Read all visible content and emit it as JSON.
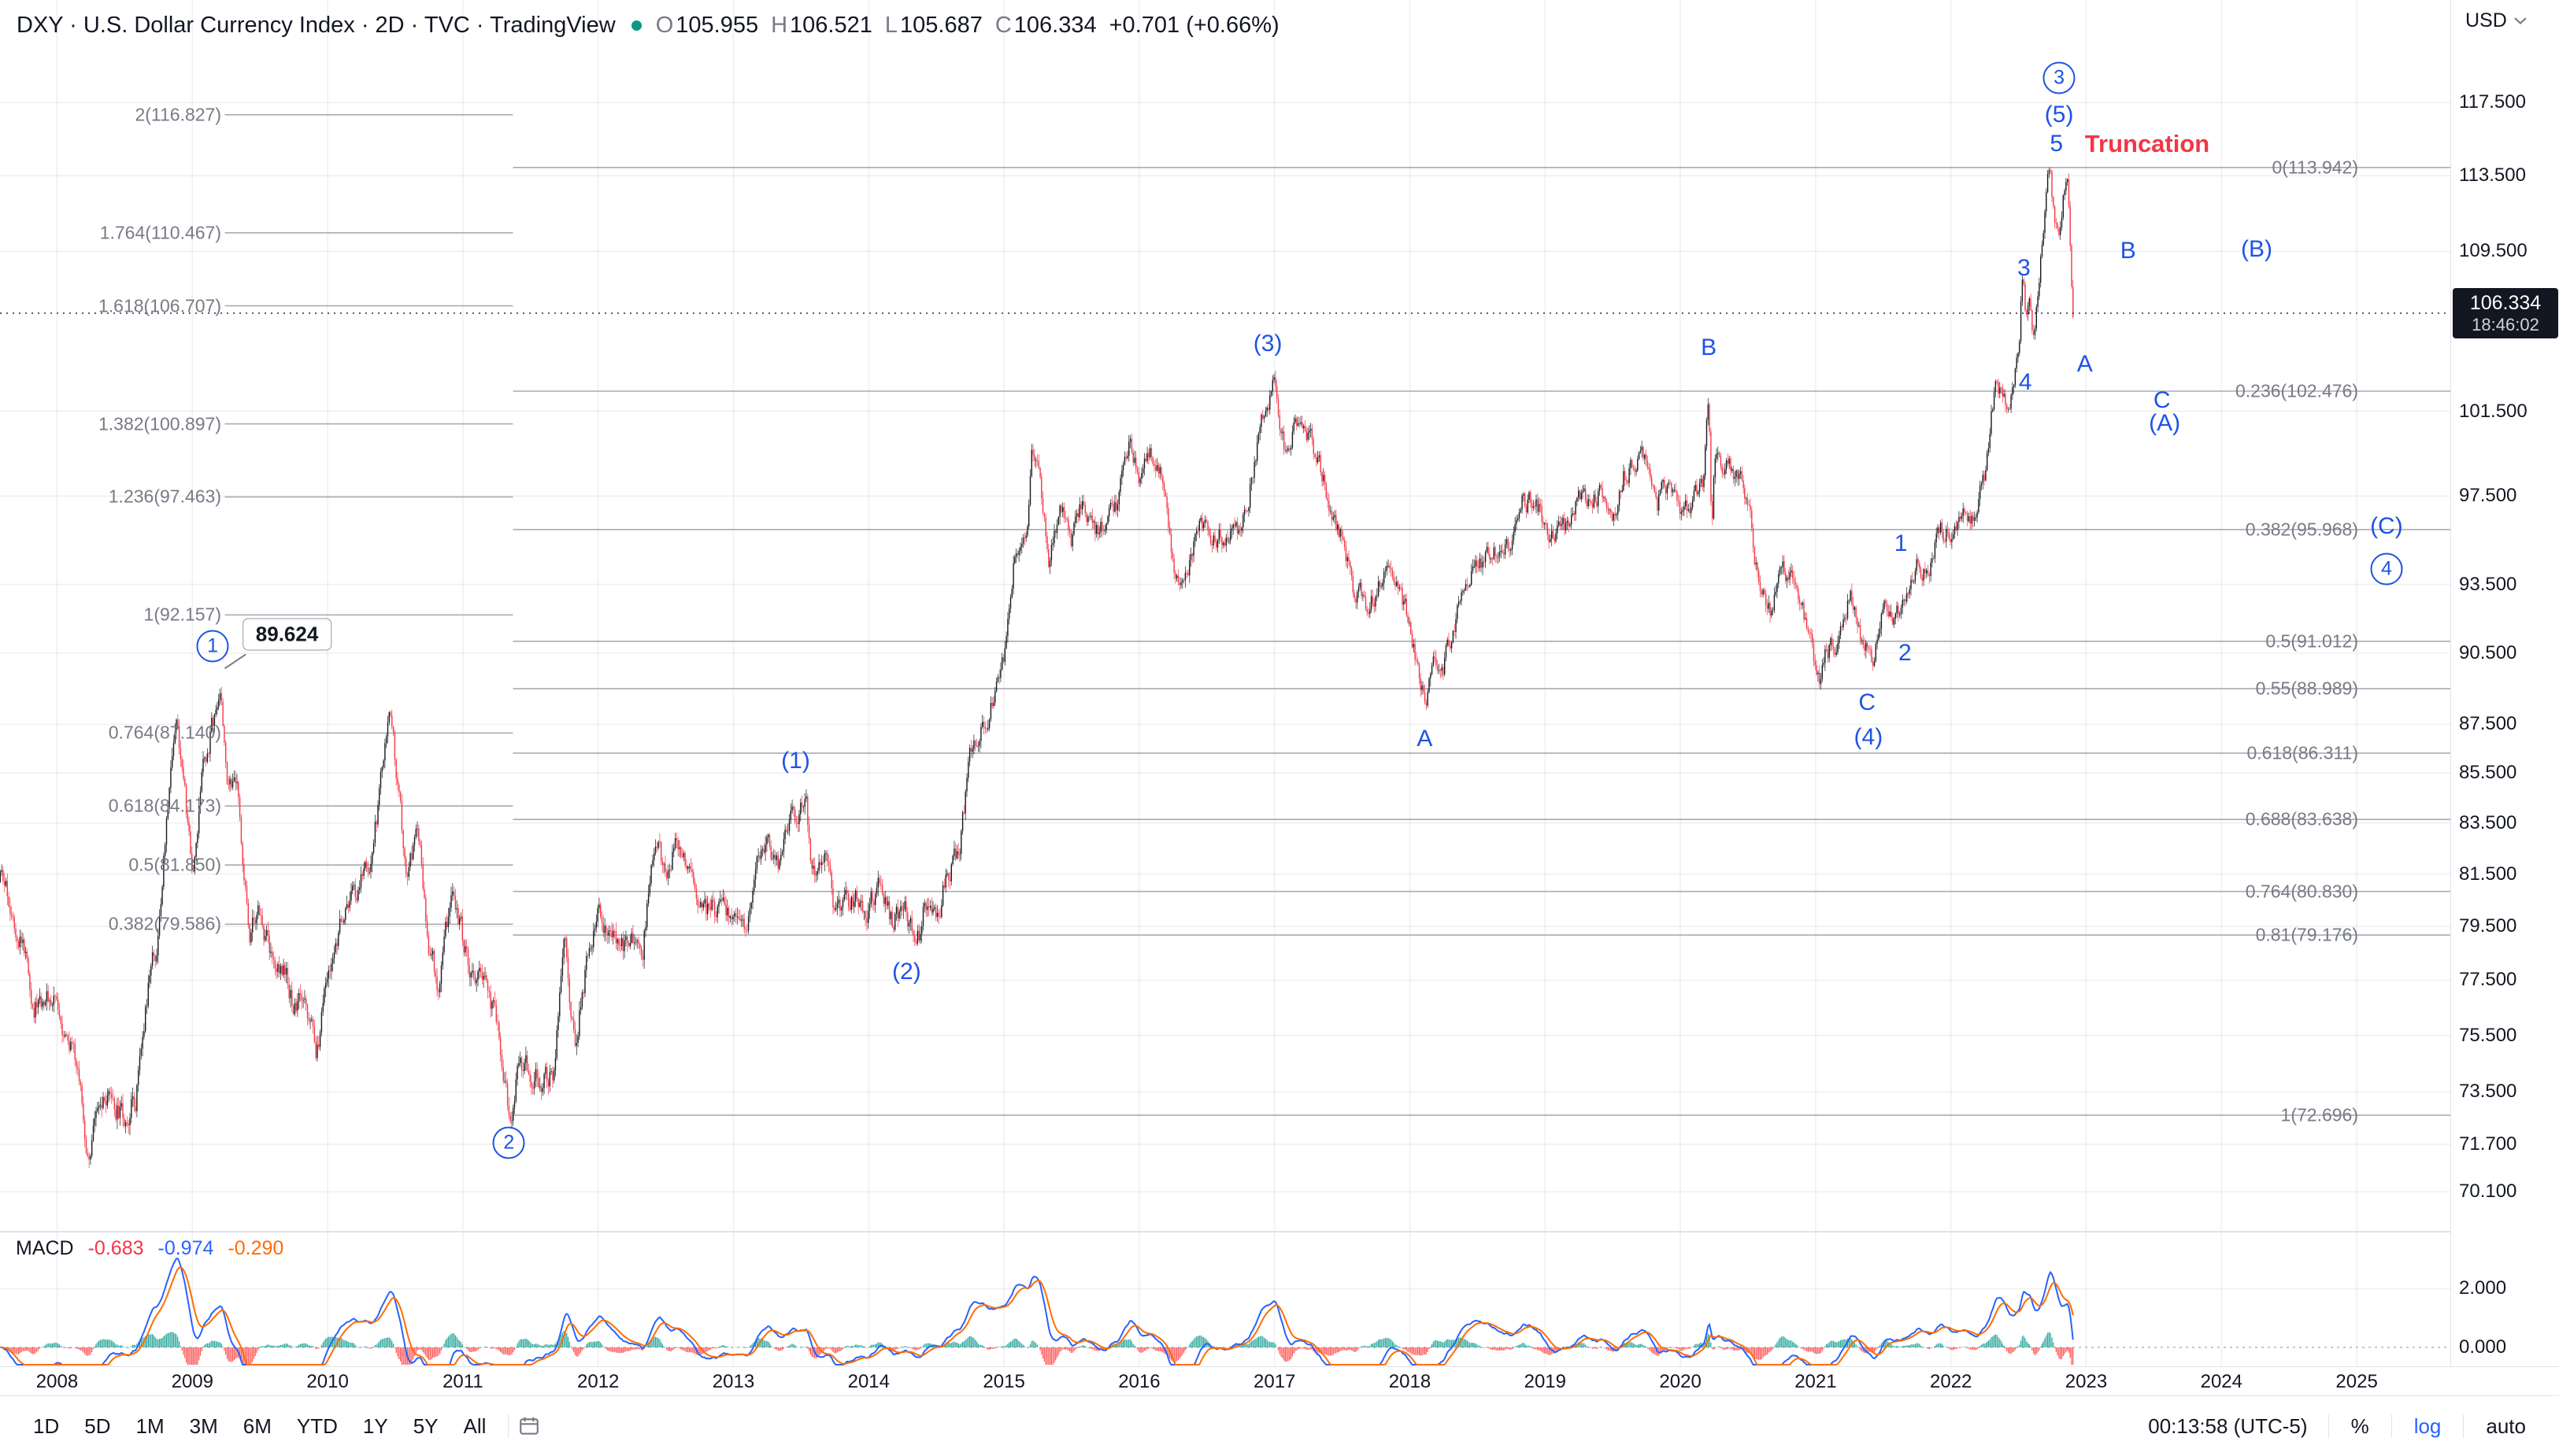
{
  "header": {
    "title": "DXY · U.S. Dollar Currency Index · 2D · TVC · TradingView",
    "ohlc": {
      "o_label": "O",
      "o": "105.955",
      "h_label": "H",
      "h": "106.521",
      "l_label": "L",
      "l": "105.687",
      "c_label": "C",
      "c": "106.334",
      "change": "+0.701 (+0.66%)"
    },
    "currency": "USD"
  },
  "colors": {
    "up": "#16181D",
    "down": "#F23645",
    "macd_line": "#2962FF",
    "signal_line": "#FF6D00",
    "hist_pos": "#26A69A",
    "hist_neg": "#FF5252",
    "wave": "#1E53E5",
    "truncation": "#F23645",
    "fib_line": "#A9ACB5",
    "fib_label": "#787B86",
    "grid": "rgba(42,46,57,0.07)",
    "status_dot": "#089981",
    "badge_bg": "#131722",
    "accent_blue": "#2962FF"
  },
  "price_axis": {
    "unit": "USD",
    "last_price": "106.334",
    "countdown": "18:46:02",
    "ticks": [
      {
        "label": "117.500",
        "value": 117.5
      },
      {
        "label": "113.500",
        "value": 113.5
      },
      {
        "label": "109.500",
        "value": 109.5
      },
      {
        "label": "101.500",
        "value": 101.5
      },
      {
        "label": "97.500",
        "value": 97.5
      },
      {
        "label": "93.500",
        "value": 93.5
      },
      {
        "label": "90.500",
        "value": 90.5
      },
      {
        "label": "87.500",
        "value": 87.5
      },
      {
        "label": "85.500",
        "value": 85.5
      },
      {
        "label": "83.500",
        "value": 83.5
      },
      {
        "label": "81.500",
        "value": 81.5
      },
      {
        "label": "79.500",
        "value": 79.5
      },
      {
        "label": "77.500",
        "value": 77.5
      },
      {
        "label": "75.500",
        "value": 75.5
      },
      {
        "label": "73.500",
        "value": 73.5
      },
      {
        "label": "71.700",
        "value": 71.7
      },
      {
        "label": "70.100",
        "value": 70.1
      }
    ]
  },
  "macd": {
    "label": "MACD",
    "hist_value": "-0.683",
    "macd_value": "-0.974",
    "signal_value": "-0.290",
    "ticks": [
      {
        "label": "2.000",
        "value": 2
      },
      {
        "label": "0.000",
        "value": 0
      }
    ]
  },
  "time_axis": {
    "years": [
      "2008",
      "2009",
      "2010",
      "2011",
      "2012",
      "2013",
      "2014",
      "2015",
      "2016",
      "2017",
      "2018",
      "2019",
      "2020",
      "2021",
      "2022",
      "2023",
      "2024",
      "2025"
    ]
  },
  "toolbar": {
    "ranges": [
      "1D",
      "5D",
      "1M",
      "3M",
      "6M",
      "YTD",
      "1Y",
      "5Y",
      "All"
    ],
    "clock": "00:13:58 (UTC-5)",
    "percent": "%",
    "log": "log",
    "auto": "auto"
  },
  "annotations": {
    "price_label": {
      "text": "89.624",
      "t": 2009.7,
      "price": 91.3
    },
    "truncation": {
      "text": "Truncation",
      "t": 2022.99,
      "price": 115.2
    },
    "waves": [
      {
        "text": "1",
        "circled": true,
        "t": 2009.15,
        "price": 90.8
      },
      {
        "text": "2",
        "circled": true,
        "t": 2011.34,
        "price": 71.75
      },
      {
        "text": "(1)",
        "circled": false,
        "t": 2013.46,
        "price": 86.0
      },
      {
        "text": "(2)",
        "circled": false,
        "t": 2014.28,
        "price": 77.8
      },
      {
        "text": "(3)",
        "circled": false,
        "t": 2016.95,
        "price": 104.8
      },
      {
        "text": "A",
        "circled": false,
        "t": 2018.11,
        "price": 86.9
      },
      {
        "text": "B",
        "circled": false,
        "t": 2020.21,
        "price": 104.6
      },
      {
        "text": "C",
        "circled": false,
        "t": 2021.38,
        "price": 88.4
      },
      {
        "text": "(4)",
        "circled": false,
        "t": 2021.39,
        "price": 86.95
      },
      {
        "text": "1",
        "circled": false,
        "t": 2021.63,
        "price": 95.3
      },
      {
        "text": "2",
        "circled": false,
        "t": 2021.66,
        "price": 90.5
      },
      {
        "text": "3",
        "circled": false,
        "t": 2022.54,
        "price": 108.6
      },
      {
        "text": "4",
        "circled": false,
        "t": 2022.55,
        "price": 102.9
      },
      {
        "text": "5",
        "circled": false,
        "t": 2022.78,
        "price": 115.2
      },
      {
        "text": "(5)",
        "circled": false,
        "t": 2022.8,
        "price": 116.8
      },
      {
        "text": "3",
        "circled": true,
        "t": 2022.8,
        "price": 118.9
      },
      {
        "text": "B",
        "circled": false,
        "t": 2023.31,
        "price": 109.5
      },
      {
        "text": "(B)",
        "circled": false,
        "t": 2024.26,
        "price": 109.6
      },
      {
        "text": "A",
        "circled": false,
        "t": 2022.99,
        "price": 103.8
      },
      {
        "text": "C",
        "circled": false,
        "t": 2023.56,
        "price": 102.0
      },
      {
        "text": "(A)",
        "circled": false,
        "t": 2023.58,
        "price": 100.9
      },
      {
        "text": "(C)",
        "circled": false,
        "t": 2025.22,
        "price": 96.1
      },
      {
        "text": "4",
        "circled": true,
        "t": 2025.22,
        "price": 94.2
      }
    ],
    "fib_left": {
      "t_start": 2009.24,
      "t_end": 2011.37,
      "levels": [
        {
          "label": "2(116.827)",
          "price": 116.827
        },
        {
          "label": "1.764(110.467)",
          "price": 110.467
        },
        {
          "label": "1.618(106.707)",
          "price": 106.707
        },
        {
          "label": "1.382(100.897)",
          "price": 100.897
        },
        {
          "label": "1.236(97.463)",
          "price": 97.463
        },
        {
          "label": "1(92.157)",
          "price": 92.157
        },
        {
          "label": "0.764(87.140)",
          "price": 87.14
        },
        {
          "label": "0.618(84.173)",
          "price": 84.173
        },
        {
          "label": "0.5(81.850)",
          "price": 81.85
        },
        {
          "label": "0.382(79.586)",
          "price": 79.586
        }
      ]
    },
    "fib_right": {
      "t_start": 2011.37,
      "levels": [
        {
          "label": "0(113.942)",
          "price": 113.942
        },
        {
          "label": "0.236(102.476)",
          "price": 102.476
        },
        {
          "label": "0.382(95.968)",
          "price": 95.968
        },
        {
          "label": "0.5(91.012)",
          "price": 91.012
        },
        {
          "label": "0.55(88.989)",
          "price": 88.989
        },
        {
          "label": "0.618(86.311)",
          "price": 86.311
        },
        {
          "label": "0.688(83.638)",
          "price": 83.638
        },
        {
          "label": "0.764(80.830)",
          "price": 80.83
        },
        {
          "label": "0.81(79.176)",
          "price": 79.176
        },
        {
          "label": "1(72.696)",
          "price": 72.696
        }
      ]
    }
  },
  "chart_data": {
    "type": "candlestick",
    "symbol": "DXY",
    "exchange": "TVC",
    "timeframe": "2D",
    "scale": "log",
    "title": "U.S. Dollar Currency Index",
    "x_range": [
      2007.58,
      2025.3
    ],
    "y_range": [
      70.1,
      118.9
    ],
    "last_price": 106.334,
    "price_anchors": [
      [
        2007.58,
        81.2
      ],
      [
        2007.67,
        80.2
      ],
      [
        2007.75,
        78.9
      ],
      [
        2007.83,
        76.6
      ],
      [
        2007.92,
        77.0
      ],
      [
        2008.0,
        76.7
      ],
      [
        2008.08,
        75.5
      ],
      [
        2008.17,
        73.7
      ],
      [
        2008.21,
        71.6
      ],
      [
        2008.25,
        71.8
      ],
      [
        2008.33,
        72.9
      ],
      [
        2008.42,
        72.9
      ],
      [
        2008.5,
        72.5
      ],
      [
        2008.58,
        73.4
      ],
      [
        2008.67,
        77.2
      ],
      [
        2008.75,
        79.1
      ],
      [
        2008.83,
        85.1
      ],
      [
        2008.88,
        88.2
      ],
      [
        2008.92,
        86.0
      ],
      [
        2009.0,
        81.3
      ],
      [
        2009.08,
        85.8
      ],
      [
        2009.17,
        88.0
      ],
      [
        2009.21,
        89.3
      ],
      [
        2009.25,
        85.4
      ],
      [
        2009.33,
        84.6
      ],
      [
        2009.42,
        79.3
      ],
      [
        2009.5,
        80.0
      ],
      [
        2009.58,
        78.3
      ],
      [
        2009.67,
        78.1
      ],
      [
        2009.75,
        76.7
      ],
      [
        2009.83,
        76.4
      ],
      [
        2009.92,
        74.9
      ],
      [
        2010.0,
        77.9
      ],
      [
        2010.08,
        79.5
      ],
      [
        2010.17,
        80.4
      ],
      [
        2010.25,
        81.1
      ],
      [
        2010.33,
        81.9
      ],
      [
        2010.42,
        86.6
      ],
      [
        2010.46,
        88.0
      ],
      [
        2010.5,
        86.0
      ],
      [
        2010.58,
        81.5
      ],
      [
        2010.67,
        83.2
      ],
      [
        2010.75,
        78.7
      ],
      [
        2010.83,
        77.3
      ],
      [
        2010.92,
        81.2
      ],
      [
        2011.0,
        79.0
      ],
      [
        2011.08,
        77.7
      ],
      [
        2011.17,
        76.9
      ],
      [
        2011.25,
        75.9
      ],
      [
        2011.33,
        73.0
      ],
      [
        2011.37,
        72.9
      ],
      [
        2011.42,
        74.6
      ],
      [
        2011.5,
        74.3
      ],
      [
        2011.58,
        73.9
      ],
      [
        2011.67,
        74.1
      ],
      [
        2011.75,
        78.6
      ],
      [
        2011.83,
        75.1
      ],
      [
        2011.92,
        78.4
      ],
      [
        2012.0,
        80.2
      ],
      [
        2012.08,
        79.3
      ],
      [
        2012.17,
        78.8
      ],
      [
        2012.25,
        79.0
      ],
      [
        2012.33,
        78.8
      ],
      [
        2012.42,
        83.0
      ],
      [
        2012.5,
        81.6
      ],
      [
        2012.58,
        82.7
      ],
      [
        2012.67,
        81.2
      ],
      [
        2012.75,
        79.9
      ],
      [
        2012.83,
        80.0
      ],
      [
        2012.92,
        80.2
      ],
      [
        2013.0,
        79.8
      ],
      [
        2013.08,
        79.2
      ],
      [
        2013.17,
        81.9
      ],
      [
        2013.25,
        83.0
      ],
      [
        2013.33,
        81.7
      ],
      [
        2013.42,
        83.4
      ],
      [
        2013.54,
        84.2
      ],
      [
        2013.58,
        81.5
      ],
      [
        2013.67,
        82.1
      ],
      [
        2013.75,
        80.2
      ],
      [
        2013.83,
        80.2
      ],
      [
        2013.92,
        80.7
      ],
      [
        2014.0,
        80.0
      ],
      [
        2014.08,
        81.3
      ],
      [
        2014.17,
        79.7
      ],
      [
        2014.25,
        80.2
      ],
      [
        2014.33,
        79.5
      ],
      [
        2014.37,
        79.1
      ],
      [
        2014.42,
        80.4
      ],
      [
        2014.5,
        79.8
      ],
      [
        2014.58,
        81.5
      ],
      [
        2014.67,
        82.7
      ],
      [
        2014.75,
        85.9
      ],
      [
        2014.83,
        87.0
      ],
      [
        2014.92,
        88.4
      ],
      [
        2015.0,
        90.3
      ],
      [
        2015.08,
        94.8
      ],
      [
        2015.17,
        95.3
      ],
      [
        2015.21,
        99.5
      ],
      [
        2015.25,
        98.4
      ],
      [
        2015.33,
        94.6
      ],
      [
        2015.42,
        96.9
      ],
      [
        2015.5,
        95.5
      ],
      [
        2015.58,
        97.3
      ],
      [
        2015.67,
        95.8
      ],
      [
        2015.75,
        96.4
      ],
      [
        2015.83,
        97.0
      ],
      [
        2015.92,
        100.2
      ],
      [
        2016.0,
        98.6
      ],
      [
        2016.08,
        99.6
      ],
      [
        2016.17,
        98.2
      ],
      [
        2016.25,
        94.6
      ],
      [
        2016.33,
        93.1
      ],
      [
        2016.42,
        95.9
      ],
      [
        2016.5,
        96.1
      ],
      [
        2016.58,
        95.5
      ],
      [
        2016.67,
        96.0
      ],
      [
        2016.75,
        95.5
      ],
      [
        2016.83,
        98.4
      ],
      [
        2016.92,
        101.5
      ],
      [
        2017.0,
        102.9
      ],
      [
        2017.08,
        99.5
      ],
      [
        2017.17,
        101.1
      ],
      [
        2017.25,
        100.4
      ],
      [
        2017.33,
        99.0
      ],
      [
        2017.42,
        96.9
      ],
      [
        2017.5,
        95.6
      ],
      [
        2017.58,
        93.4
      ],
      [
        2017.67,
        92.7
      ],
      [
        2017.75,
        93.1
      ],
      [
        2017.83,
        94.6
      ],
      [
        2017.92,
        93.0
      ],
      [
        2018.0,
        92.1
      ],
      [
        2018.08,
        89.1
      ],
      [
        2018.13,
        88.6
      ],
      [
        2018.17,
        90.6
      ],
      [
        2018.25,
        90.0
      ],
      [
        2018.33,
        91.8
      ],
      [
        2018.42,
        94.0
      ],
      [
        2018.5,
        94.5
      ],
      [
        2018.58,
        94.6
      ],
      [
        2018.67,
        95.1
      ],
      [
        2018.75,
        95.1
      ],
      [
        2018.83,
        97.1
      ],
      [
        2018.92,
        97.3
      ],
      [
        2019.0,
        96.2
      ],
      [
        2019.08,
        95.6
      ],
      [
        2019.17,
        96.2
      ],
      [
        2019.25,
        97.2
      ],
      [
        2019.33,
        97.5
      ],
      [
        2019.42,
        97.7
      ],
      [
        2019.5,
        96.1
      ],
      [
        2019.58,
        98.5
      ],
      [
        2019.67,
        98.9
      ],
      [
        2019.75,
        99.4
      ],
      [
        2019.83,
        97.3
      ],
      [
        2019.92,
        98.3
      ],
      [
        2020.0,
        96.4
      ],
      [
        2020.08,
        97.4
      ],
      [
        2020.17,
        98.1
      ],
      [
        2020.21,
        102.3
      ],
      [
        2020.23,
        95.5
      ],
      [
        2020.25,
        99.0
      ],
      [
        2020.33,
        99.0
      ],
      [
        2020.42,
        98.3
      ],
      [
        2020.5,
        97.4
      ],
      [
        2020.58,
        93.3
      ],
      [
        2020.67,
        92.1
      ],
      [
        2020.75,
        93.9
      ],
      [
        2020.83,
        94.0
      ],
      [
        2020.92,
        91.9
      ],
      [
        2021.0,
        89.9
      ],
      [
        2021.04,
        89.5
      ],
      [
        2021.08,
        90.6
      ],
      [
        2021.17,
        90.9
      ],
      [
        2021.25,
        93.2
      ],
      [
        2021.33,
        91.3
      ],
      [
        2021.42,
        90.0
      ],
      [
        2021.5,
        92.4
      ],
      [
        2021.58,
        92.2
      ],
      [
        2021.67,
        92.6
      ],
      [
        2021.75,
        94.2
      ],
      [
        2021.83,
        94.1
      ],
      [
        2021.92,
        95.9
      ],
      [
        2022.0,
        95.7
      ],
      [
        2022.08,
        96.5
      ],
      [
        2022.17,
        96.7
      ],
      [
        2022.25,
        98.3
      ],
      [
        2022.33,
        103.0
      ],
      [
        2022.42,
        101.8
      ],
      [
        2022.46,
        102.5
      ],
      [
        2022.5,
        104.2
      ],
      [
        2022.53,
        108.4
      ],
      [
        2022.555,
        106.0
      ],
      [
        2022.585,
        106.7
      ],
      [
        2022.61,
        104.9
      ],
      [
        2022.64,
        107.0
      ],
      [
        2022.67,
        109.6
      ],
      [
        2022.7,
        112.0
      ],
      [
        2022.73,
        114.2
      ],
      [
        2022.755,
        112.0
      ],
      [
        2022.78,
        110.6
      ],
      [
        2022.8,
        110.2
      ],
      [
        2022.83,
        112.2
      ],
      [
        2022.855,
        113.5
      ],
      [
        2022.875,
        111.8
      ],
      [
        2022.89,
        108.0
      ],
      [
        2022.905,
        106.3
      ]
    ],
    "indicator": {
      "name": "MACD",
      "derivation": "EMA(12)-EMA(26), signal EMA(9), histogram = macd-signal",
      "visible_values": [
        -0.683,
        -0.974,
        -0.29
      ],
      "y_ticks": [
        2.0,
        0.0
      ]
    }
  }
}
